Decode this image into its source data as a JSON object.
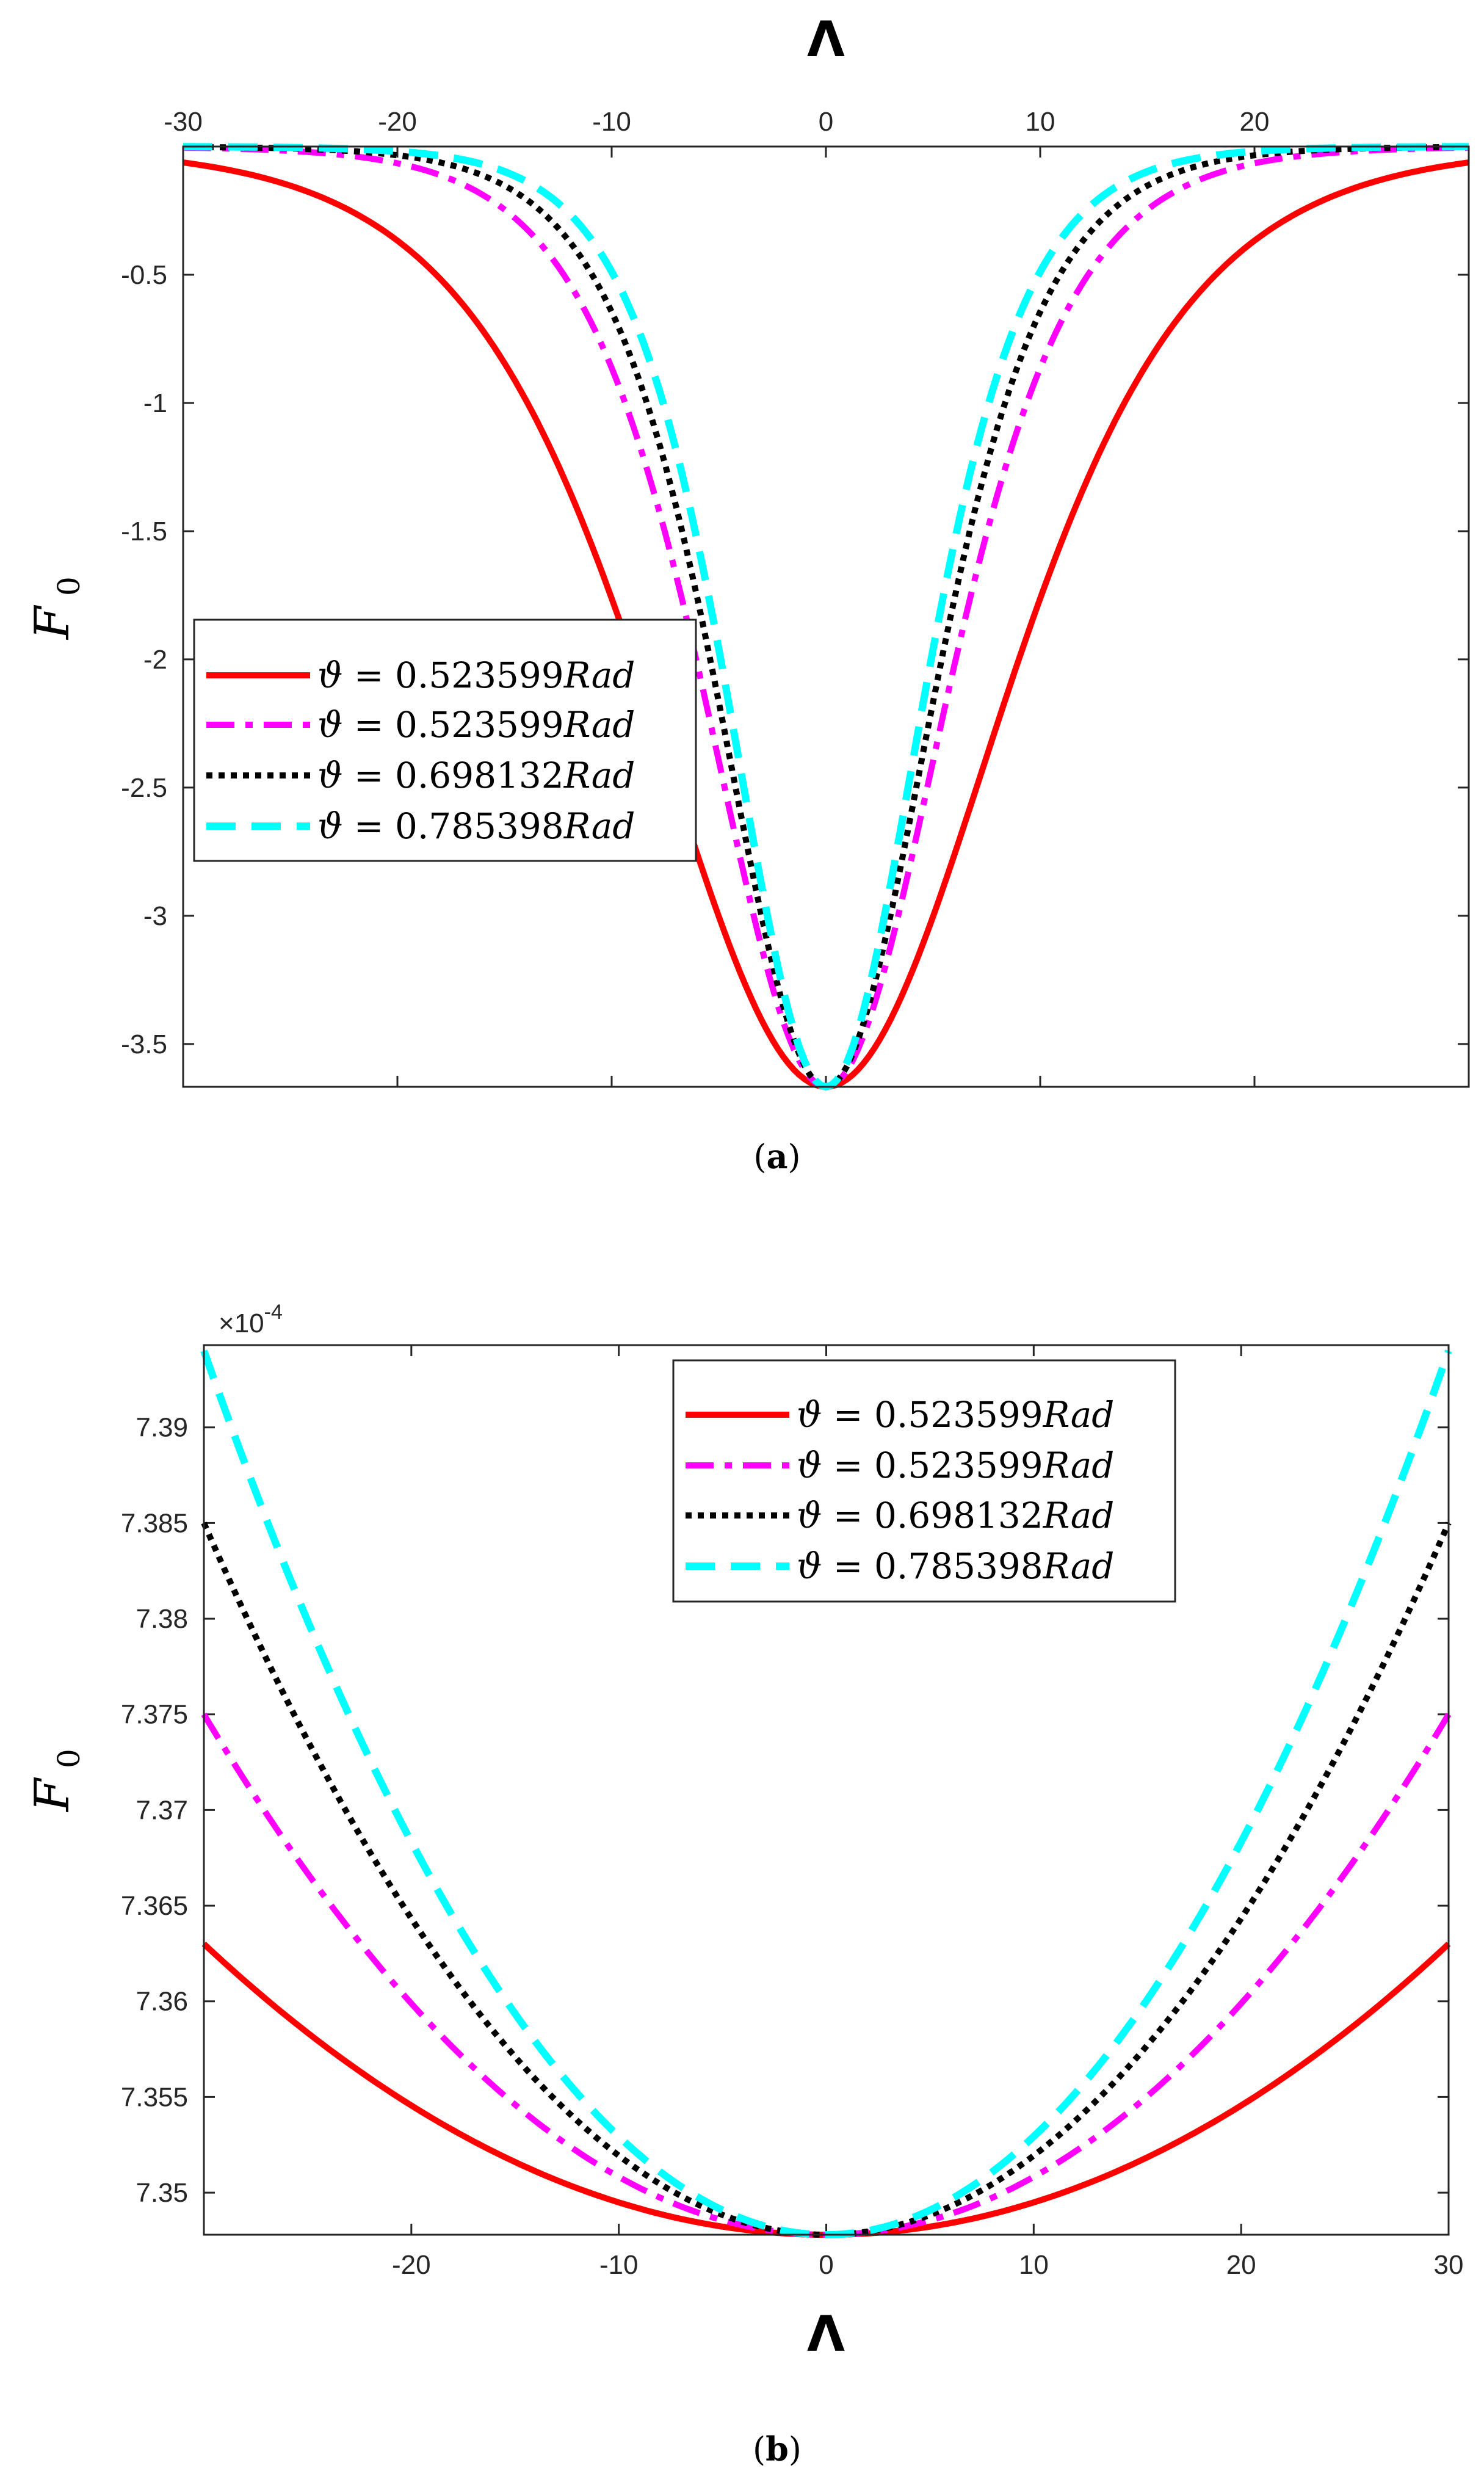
{
  "chart_data": [
    {
      "type": "line",
      "panel": "a",
      "caption": "(a)",
      "caption_letter": "a",
      "xlabel": "Λ",
      "ylabel": "F",
      "ylabel_sub": "0",
      "xaxis_position": "top",
      "xlim": [
        -30,
        30
      ],
      "ylim": [
        -3.667,
        0
      ],
      "xticks": [
        -30,
        -20,
        -10,
        0,
        10,
        20
      ],
      "xtick_labels": [
        "-30",
        "-20",
        "-10",
        "0",
        "10",
        "20"
      ],
      "yticks": [
        -0.5,
        -1,
        -1.5,
        -2,
        -2.5,
        -3,
        -3.5
      ],
      "ytick_labels": [
        "-0.5",
        "-1",
        "-1.5",
        "-2",
        "-2.5",
        "-3",
        "-3.5"
      ],
      "legend_position": "middle-left",
      "curve_model": {
        "amplitude": -3.667,
        "form": "sech^2"
      },
      "series": [
        {
          "name": "ϑ = 0.523599Rad",
          "symbol": "ϑ",
          "value": "0.523599",
          "unit": "Rad",
          "color": "#ff0000",
          "style": "solid",
          "width_param": 11.0
        },
        {
          "name": "ϑ = 0.523599Rad",
          "symbol": "ϑ",
          "value": "0.523599",
          "unit": "Rad",
          "color": "#ff00ff",
          "style": "dashdot",
          "width_param": 7.4
        },
        {
          "name": "ϑ = 0.698132Rad",
          "symbol": "ϑ",
          "value": "0.698132",
          "unit": "Rad",
          "color": "#000000",
          "style": "dotted",
          "width_param": 6.6
        },
        {
          "name": "ϑ = 0.785398Rad",
          "symbol": "ϑ",
          "value": "0.785398",
          "unit": "Rad",
          "color": "#00ffff",
          "style": "dashed",
          "width_param": 6.0
        }
      ]
    },
    {
      "type": "line",
      "panel": "b",
      "caption": "(b)",
      "caption_letter": "b",
      "xlabel": "Λ",
      "ylabel": "F",
      "ylabel_sub": "0",
      "xaxis_position": "bottom",
      "xlim": [
        -30,
        30
      ],
      "ylim": [
        7.3478,
        7.3943
      ],
      "y_exponent_base": "×10",
      "y_exponent_power": "-4",
      "xticks": [
        -20,
        -10,
        0,
        10,
        20,
        30
      ],
      "xtick_labels": [
        "-20",
        "-10",
        "0",
        "10",
        "20",
        "30"
      ],
      "yticks": [
        7.35,
        7.355,
        7.36,
        7.365,
        7.37,
        7.375,
        7.38,
        7.385,
        7.39
      ],
      "ytick_labels": [
        "7.35",
        "7.355",
        "7.36",
        "7.365",
        "7.37",
        "7.375",
        "7.38",
        "7.385",
        "7.39"
      ],
      "legend_position": "top-right",
      "curve_model": {
        "vertex": 7.3478,
        "form": "parabola",
        "curvature_at_edge": "value at |Λ| = 30"
      },
      "series": [
        {
          "name": "ϑ = 0.523599Rad",
          "symbol": "ϑ",
          "value": "0.523599",
          "unit": "Rad",
          "color": "#ff0000",
          "style": "solid",
          "edge_value": 7.363
        },
        {
          "name": "ϑ = 0.523599Rad",
          "symbol": "ϑ",
          "value": "0.523599",
          "unit": "Rad",
          "color": "#ff00ff",
          "style": "dashdot",
          "edge_value": 7.375
        },
        {
          "name": "ϑ = 0.698132Rad",
          "symbol": "ϑ",
          "value": "0.698132",
          "unit": "Rad",
          "color": "#000000",
          "style": "dotted",
          "edge_value": 7.385
        },
        {
          "name": "ϑ = 0.785398Rad",
          "symbol": "ϑ",
          "value": "0.785398",
          "unit": "Rad",
          "color": "#00ffff",
          "style": "dashed",
          "edge_value": 7.394
        }
      ]
    }
  ]
}
